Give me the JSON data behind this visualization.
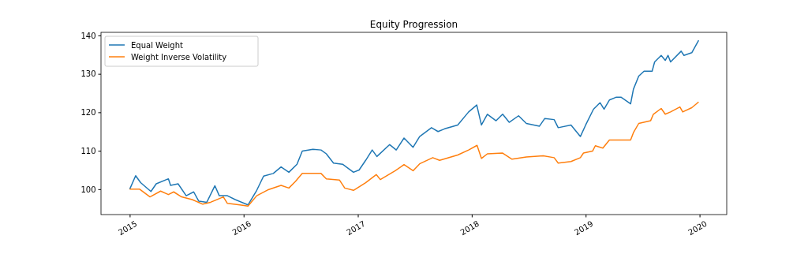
{
  "chart_data": {
    "type": "line",
    "title": "Equity Progression",
    "xlim": [
      "2014-10-01",
      "2020-03-28"
    ],
    "ylim": [
      93.4,
      140.8
    ],
    "xticks": [
      {
        "value": "2015-01-01",
        "label": "2015"
      },
      {
        "value": "2016-01-01",
        "label": "2016"
      },
      {
        "value": "2017-01-01",
        "label": "2017"
      },
      {
        "value": "2018-01-01",
        "label": "2018"
      },
      {
        "value": "2019-01-01",
        "label": "2019"
      },
      {
        "value": "2020-01-01",
        "label": "2020"
      }
    ],
    "yticks": [
      100,
      110,
      120,
      130,
      140
    ],
    "legend": "top left",
    "grid": false,
    "series": [
      {
        "name": "Equal Weight",
        "color": "#1f77b4",
        "x": [
          "2015-01-01",
          "2015-01-20",
          "2015-02-05",
          "2015-03-10",
          "2015-03-27",
          "2015-05-05",
          "2015-05-12",
          "2015-06-05",
          "2015-07-01",
          "2015-07-25",
          "2015-08-10",
          "2015-09-05",
          "2015-10-01",
          "2015-10-15",
          "2015-11-10",
          "2015-12-05",
          "2016-01-15",
          "2016-02-12",
          "2016-03-05",
          "2016-04-05",
          "2016-04-30",
          "2016-05-25",
          "2016-06-20",
          "2016-07-07",
          "2016-08-10",
          "2016-09-05",
          "2016-09-22",
          "2016-10-15",
          "2016-11-13",
          "2016-12-18",
          "2017-01-05",
          "2017-01-26",
          "2017-02-16",
          "2017-03-03",
          "2017-04-13",
          "2017-05-04",
          "2017-05-29",
          "2017-06-27",
          "2017-07-18",
          "2017-08-25",
          "2017-09-15",
          "2017-10-06",
          "2017-11-17",
          "2017-12-22",
          "2018-01-17",
          "2018-02-01",
          "2018-02-20",
          "2018-03-20",
          "2018-04-10",
          "2018-05-01",
          "2018-05-31",
          "2018-06-25",
          "2018-08-06",
          "2018-08-23",
          "2018-09-22",
          "2018-10-05",
          "2018-11-15",
          "2018-12-15",
          "2019-01-01",
          "2019-01-26",
          "2019-02-16",
          "2019-03-01",
          "2019-03-18",
          "2019-04-08",
          "2019-04-25",
          "2019-05-25",
          "2019-06-03",
          "2019-06-20",
          "2019-07-07",
          "2019-08-02",
          "2019-08-10",
          "2019-08-31",
          "2019-09-13",
          "2019-09-22",
          "2019-09-30",
          "2019-11-03",
          "2019-11-12",
          "2019-12-07",
          "2019-12-29"
        ],
        "values": [
          100,
          103.5,
          101.7,
          99.4,
          101.4,
          102.7,
          101,
          101.4,
          98.3,
          99.3,
          96.9,
          96.6,
          100.9,
          98.3,
          98.3,
          97.3,
          95.9,
          99.7,
          103.4,
          104.1,
          105.8,
          104.4,
          106.5,
          109.9,
          110.4,
          110.2,
          109.2,
          106.8,
          106.5,
          104.4,
          105,
          107.5,
          110.2,
          108.5,
          111.6,
          110.2,
          113.3,
          110.9,
          113.7,
          116,
          115,
          115.7,
          116.7,
          120.1,
          121.9,
          116.7,
          119.5,
          117.8,
          119.5,
          117.4,
          119.1,
          117.1,
          116.4,
          118.4,
          118.1,
          116,
          116.7,
          113.7,
          116.7,
          120.8,
          122.5,
          120.8,
          123.2,
          123.9,
          123.9,
          122.2,
          126,
          129.4,
          130.7,
          130.7,
          133.1,
          134.8,
          133.5,
          134.8,
          133.1,
          135.9,
          134.8,
          135.5,
          138.7
        ]
      },
      {
        "name": "Weight Inverse Volatility",
        "color": "#ff7f0e",
        "x": [
          "2015-01-01",
          "2015-02-02",
          "2015-03-07",
          "2015-04-10",
          "2015-05-05",
          "2015-05-22",
          "2015-06-16",
          "2015-07-20",
          "2015-08-23",
          "2015-09-17",
          "2015-10-28",
          "2015-11-10",
          "2015-12-20",
          "2016-01-15",
          "2016-02-12",
          "2016-03-18",
          "2016-04-30",
          "2016-05-25",
          "2016-06-15",
          "2016-07-07",
          "2016-09-05",
          "2016-09-22",
          "2016-11-03",
          "2016-11-20",
          "2016-12-18",
          "2017-01-26",
          "2017-03-01",
          "2017-03-14",
          "2017-05-01",
          "2017-05-29",
          "2017-06-27",
          "2017-07-18",
          "2017-08-29",
          "2017-09-20",
          "2017-11-17",
          "2017-12-22",
          "2018-01-18",
          "2018-02-01",
          "2018-02-20",
          "2018-04-10",
          "2018-05-10",
          "2018-06-25",
          "2018-08-18",
          "2018-09-22",
          "2018-10-05",
          "2018-11-15",
          "2018-12-15",
          "2018-12-25",
          "2019-01-23",
          "2019-02-01",
          "2019-02-25",
          "2019-03-18",
          "2019-04-12",
          "2019-05-25",
          "2019-06-03",
          "2019-06-20",
          "2019-07-28",
          "2019-08-06",
          "2019-08-31",
          "2019-09-13",
          "2019-09-30",
          "2019-10-30",
          "2019-11-08",
          "2019-12-07",
          "2019-12-29"
        ],
        "values": [
          100,
          100,
          98,
          99.5,
          98.6,
          99.3,
          98,
          97.3,
          96.1,
          96.6,
          98,
          96.3,
          95.9,
          95.6,
          98.3,
          99.8,
          101,
          100.3,
          102,
          104.1,
          104.1,
          102.7,
          102.4,
          100.3,
          99.7,
          101.7,
          103.8,
          102.5,
          104.8,
          106.4,
          104.8,
          106.6,
          108.2,
          107.5,
          108.9,
          110.2,
          111.4,
          108,
          109.2,
          109.4,
          107.8,
          108.4,
          108.7,
          108.2,
          106.8,
          107.2,
          108.2,
          109.4,
          109.9,
          111.3,
          110.7,
          112.8,
          112.8,
          112.8,
          114.7,
          117.1,
          117.8,
          119.5,
          121,
          119.5,
          120.1,
          121.4,
          120.1,
          121.2,
          122.7
        ]
      }
    ]
  }
}
